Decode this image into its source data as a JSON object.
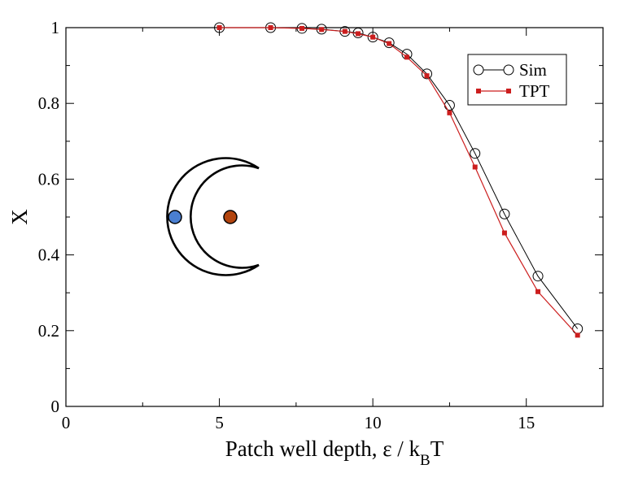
{
  "chart_data": {
    "type": "line",
    "xlabel": {
      "main": "Patch well depth, ε / k",
      "sub": "B",
      "tail": "T"
    },
    "ylabel": "X",
    "xlim": [
      0,
      17.5
    ],
    "ylim": [
      0,
      1
    ],
    "x_ticks": [
      0,
      5,
      10,
      15
    ],
    "y_ticks": [
      0,
      0.2,
      0.4,
      0.6,
      0.8,
      1
    ],
    "x_ticks_labels": [
      "0",
      "5",
      "10",
      "15"
    ],
    "y_ticks_labels": [
      "0",
      "0.2",
      "0.4",
      "0.6",
      "0.8",
      "1"
    ],
    "x_minor_step": 2.5,
    "y_minor_step": 0.1,
    "grid": false,
    "legend_position": "top-right",
    "series": [
      {
        "name": "Sim",
        "color": "#000000",
        "marker": "open-circle",
        "x": [
          5.0,
          6.67,
          7.69,
          8.33,
          9.09,
          9.52,
          10.0,
          10.53,
          11.11,
          11.76,
          12.5,
          13.33,
          14.29,
          15.38,
          16.67
        ],
        "y": [
          1.0,
          1.0,
          0.998,
          0.996,
          0.99,
          0.986,
          0.975,
          0.96,
          0.93,
          0.878,
          0.795,
          0.668,
          0.508,
          0.344,
          0.205
        ]
      },
      {
        "name": "TPT",
        "color": "#cc1e1e",
        "marker": "filled-square",
        "x": [
          5.0,
          6.67,
          7.69,
          8.33,
          9.09,
          9.52,
          10.0,
          10.53,
          11.11,
          11.76,
          12.5,
          13.33,
          14.29,
          15.38,
          16.67
        ],
        "y": [
          1.0,
          1.0,
          0.998,
          0.995,
          0.99,
          0.984,
          0.975,
          0.958,
          0.922,
          0.873,
          0.775,
          0.632,
          0.458,
          0.303,
          0.188
        ]
      }
    ],
    "inset": {
      "description": "crescent-shaped particle with two patch sites",
      "outline_color": "#000000",
      "patches": [
        {
          "name": "outer-patch",
          "color": "#4a7fd1"
        },
        {
          "name": "inner-patch",
          "color": "#b2440e"
        }
      ]
    }
  }
}
